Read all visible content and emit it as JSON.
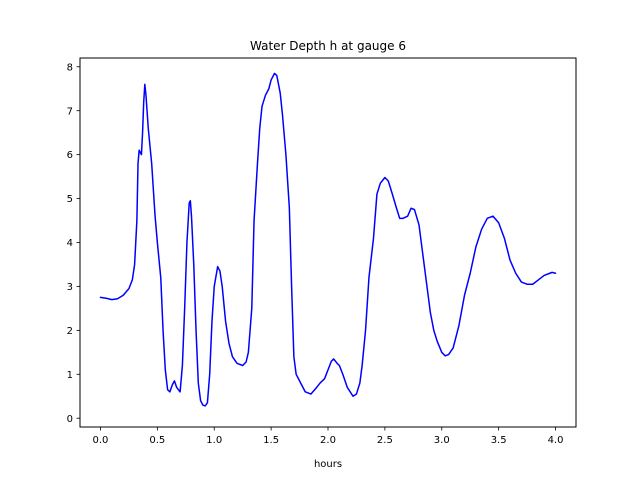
{
  "chart_data": {
    "type": "line",
    "title": "Water Depth h at gauge 6",
    "xlabel": "hours",
    "ylabel": "",
    "xlim": [
      -0.18,
      4.18
    ],
    "ylim": [
      -0.2,
      8.2
    ],
    "xticks": [
      0.0,
      0.5,
      1.0,
      1.5,
      2.0,
      2.5,
      3.0,
      3.5,
      4.0
    ],
    "xtick_labels": [
      "0.0",
      "0.5",
      "1.0",
      "1.5",
      "2.0",
      "2.5",
      "3.0",
      "3.5",
      "4.0"
    ],
    "yticks": [
      0,
      1,
      2,
      3,
      4,
      5,
      6,
      7,
      8
    ],
    "ytick_labels": [
      "0",
      "1",
      "2",
      "3",
      "4",
      "5",
      "6",
      "7",
      "8"
    ],
    "grid": false,
    "series": [
      {
        "color": "#0000ff",
        "x": [
          0.0,
          0.05,
          0.1,
          0.15,
          0.2,
          0.25,
          0.28,
          0.3,
          0.32,
          0.33,
          0.34,
          0.36,
          0.37,
          0.38,
          0.39,
          0.4,
          0.42,
          0.45,
          0.48,
          0.5,
          0.53,
          0.55,
          0.57,
          0.59,
          0.61,
          0.63,
          0.65,
          0.67,
          0.7,
          0.72,
          0.74,
          0.76,
          0.78,
          0.79,
          0.8,
          0.82,
          0.84,
          0.86,
          0.88,
          0.9,
          0.92,
          0.94,
          0.96,
          0.98,
          1.0,
          1.03,
          1.05,
          1.07,
          1.1,
          1.13,
          1.16,
          1.2,
          1.25,
          1.28,
          1.3,
          1.33,
          1.35,
          1.38,
          1.4,
          1.42,
          1.45,
          1.48,
          1.5,
          1.53,
          1.55,
          1.58,
          1.6,
          1.63,
          1.66,
          1.68,
          1.7,
          1.72,
          1.75,
          1.8,
          1.85,
          1.9,
          1.93,
          1.97,
          2.0,
          2.03,
          2.05,
          2.08,
          2.1,
          2.13,
          2.17,
          2.22,
          2.25,
          2.28,
          2.3,
          2.33,
          2.36,
          2.4,
          2.43,
          2.46,
          2.5,
          2.53,
          2.56,
          2.6,
          2.63,
          2.66,
          2.7,
          2.73,
          2.76,
          2.8,
          2.83,
          2.87,
          2.9,
          2.93,
          2.96,
          3.0,
          3.03,
          3.06,
          3.1,
          3.15,
          3.2,
          3.25,
          3.3,
          3.35,
          3.4,
          3.45,
          3.5,
          3.55,
          3.6,
          3.65,
          3.7,
          3.75,
          3.8,
          3.85,
          3.9,
          3.95,
          3.97,
          4.0
        ],
        "y": [
          2.75,
          2.73,
          2.7,
          2.72,
          2.8,
          2.95,
          3.15,
          3.5,
          4.5,
          5.8,
          6.1,
          6.0,
          6.5,
          7.2,
          7.6,
          7.35,
          6.6,
          5.8,
          4.6,
          4.0,
          3.2,
          2.0,
          1.1,
          0.65,
          0.6,
          0.75,
          0.85,
          0.7,
          0.6,
          1.2,
          2.5,
          4.0,
          4.9,
          4.95,
          4.6,
          3.5,
          2.0,
          0.8,
          0.4,
          0.3,
          0.28,
          0.35,
          1.0,
          2.2,
          3.0,
          3.45,
          3.35,
          3.0,
          2.2,
          1.7,
          1.4,
          1.25,
          1.2,
          1.28,
          1.5,
          2.5,
          4.5,
          5.8,
          6.6,
          7.1,
          7.35,
          7.5,
          7.7,
          7.85,
          7.8,
          7.4,
          6.9,
          6.0,
          4.8,
          3.0,
          1.4,
          1.0,
          0.85,
          0.6,
          0.55,
          0.7,
          0.8,
          0.9,
          1.1,
          1.3,
          1.35,
          1.25,
          1.2,
          1.0,
          0.7,
          0.5,
          0.55,
          0.8,
          1.2,
          2.0,
          3.2,
          4.1,
          5.1,
          5.35,
          5.48,
          5.4,
          5.15,
          4.8,
          4.55,
          4.55,
          4.6,
          4.78,
          4.75,
          4.4,
          3.8,
          3.0,
          2.4,
          2.0,
          1.75,
          1.5,
          1.42,
          1.45,
          1.6,
          2.1,
          2.8,
          3.3,
          3.9,
          4.3,
          4.55,
          4.6,
          4.45,
          4.1,
          3.6,
          3.3,
          3.1,
          3.05,
          3.05,
          3.15,
          3.25,
          3.3,
          3.32,
          3.3
        ]
      }
    ]
  }
}
